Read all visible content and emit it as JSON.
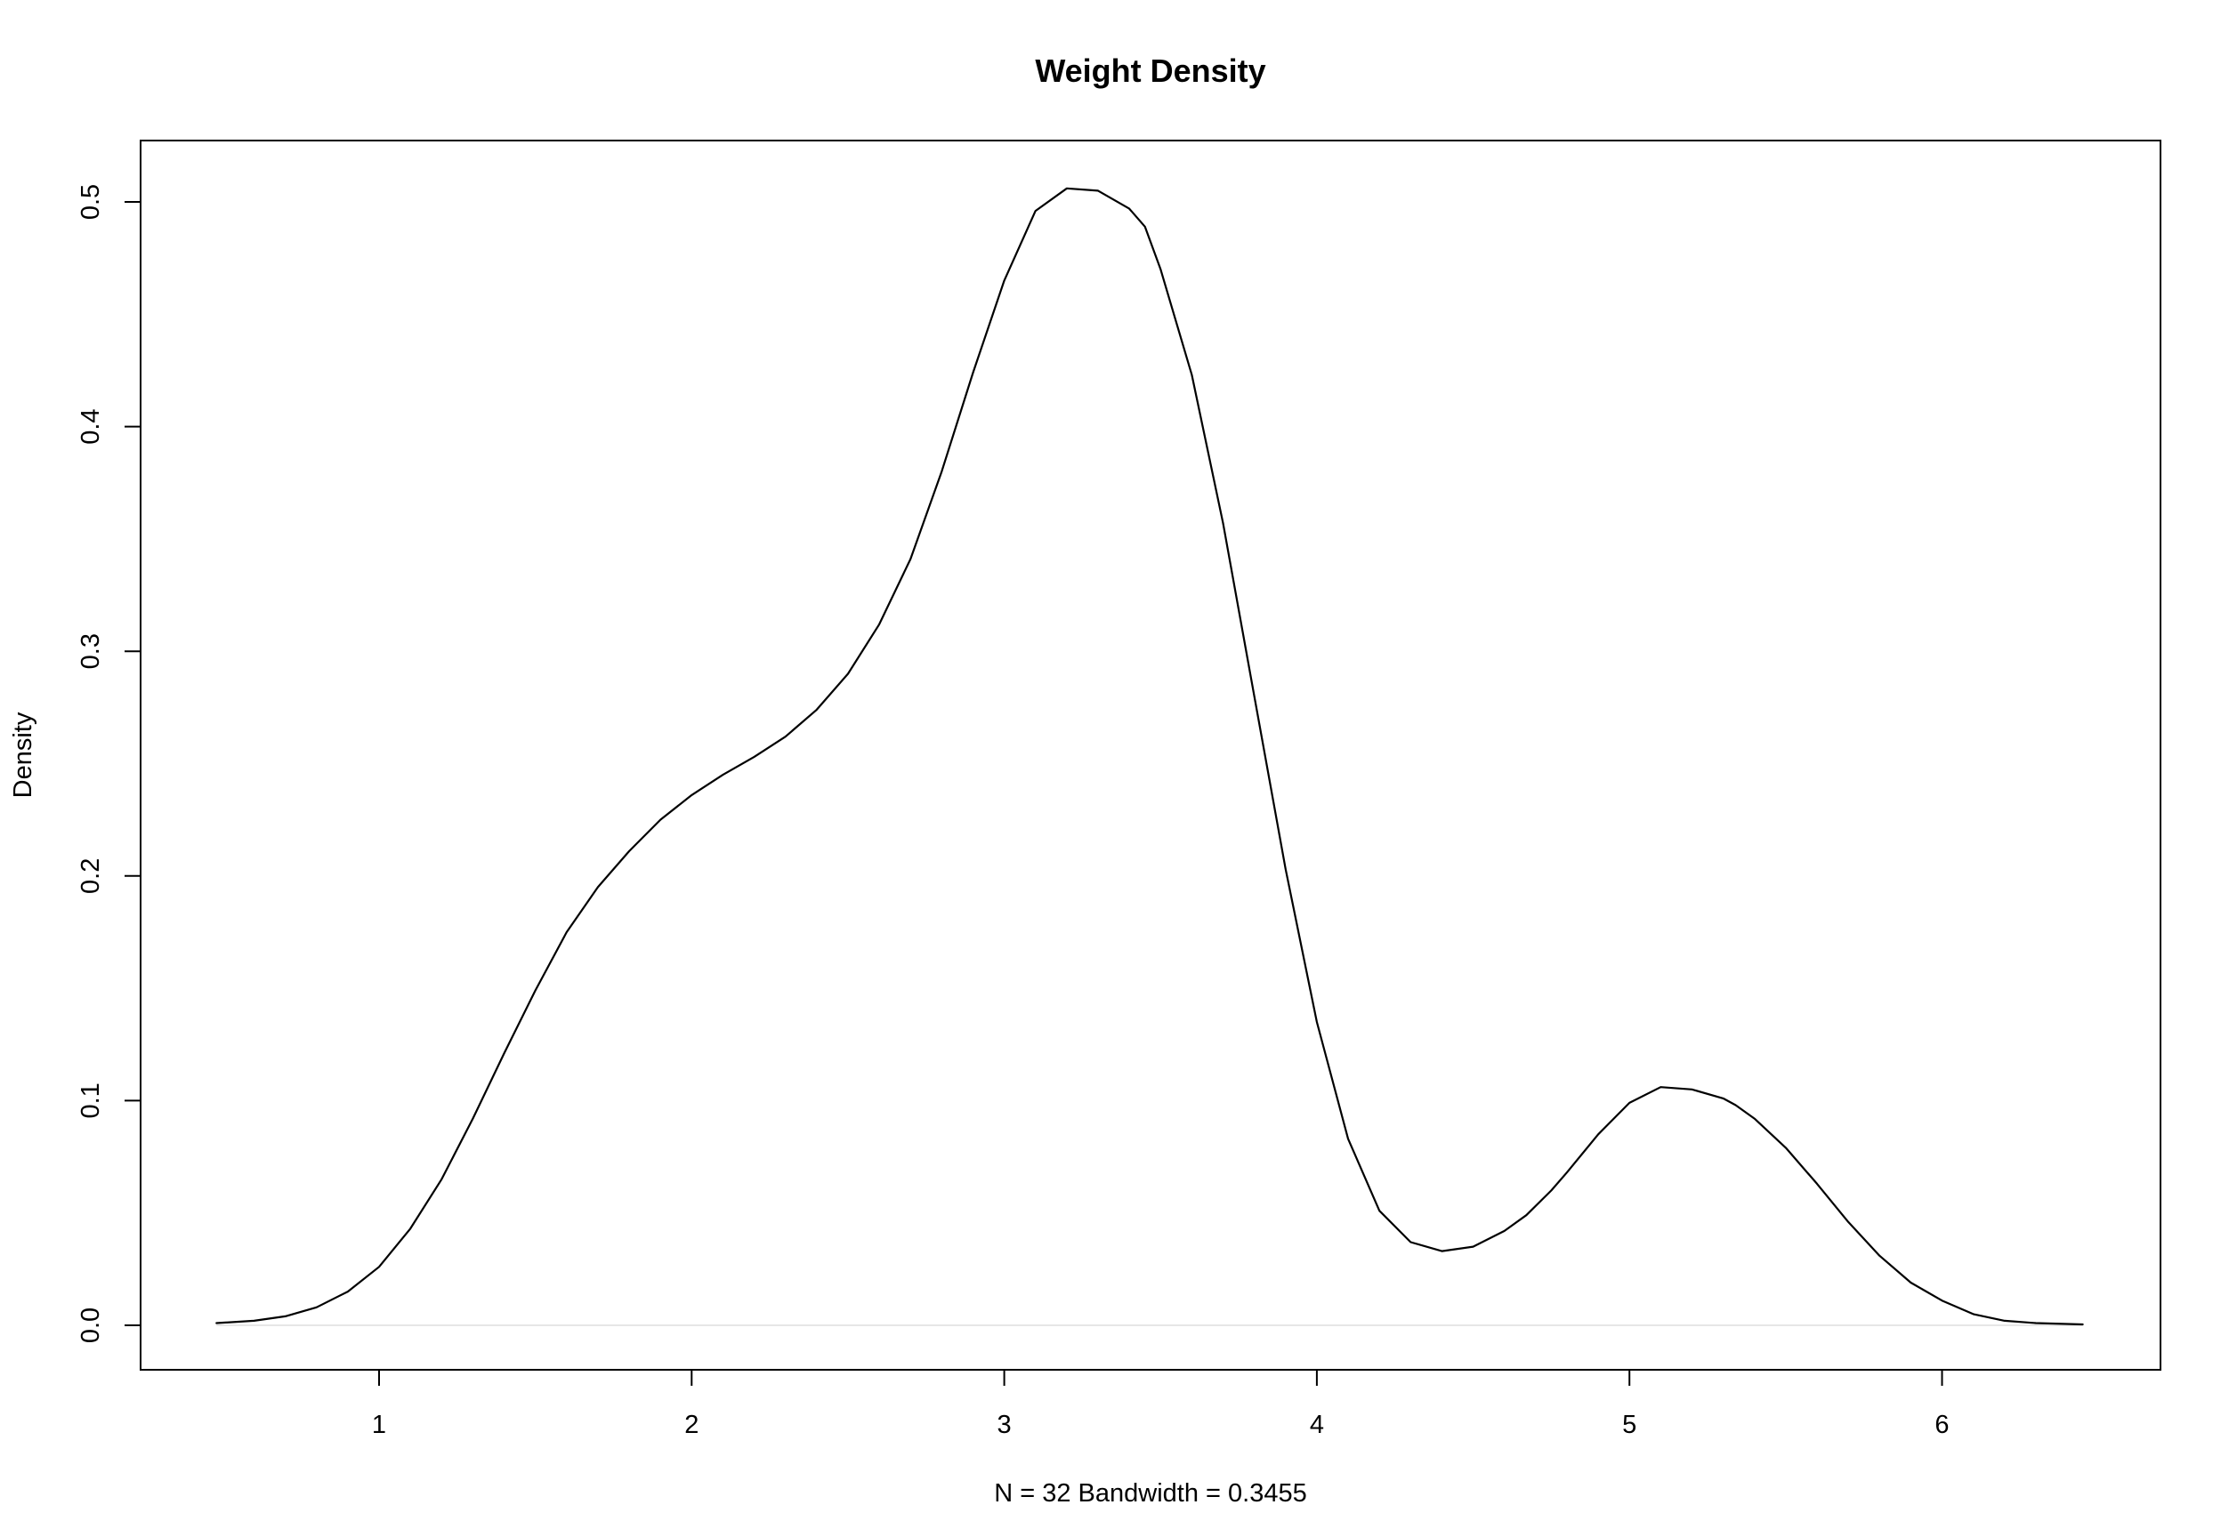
{
  "chart_data": {
    "type": "line",
    "title": "Weight Density",
    "xlabel": "N = 32   Bandwidth = 0.3455",
    "ylabel": "Density",
    "xlim": [
      0.5,
      6.5
    ],
    "ylim": [
      0.0,
      0.5
    ],
    "x_ticks": [
      1,
      2,
      3,
      4,
      5,
      6
    ],
    "x_tick_labels": [
      "1",
      "2",
      "3",
      "4",
      "5",
      "6"
    ],
    "y_ticks": [
      0.0,
      0.1,
      0.2,
      0.3,
      0.4,
      0.5
    ],
    "y_tick_labels": [
      "0.0",
      "0.1",
      "0.2",
      "0.3",
      "0.4",
      "0.5"
    ],
    "grid": false,
    "legend": "none",
    "zero_line": true,
    "series": [
      {
        "color": "#000000",
        "x": [
          0.48,
          0.6,
          0.7,
          0.8,
          0.9,
          1.0,
          1.1,
          1.2,
          1.3,
          1.4,
          1.5,
          1.6,
          1.7,
          1.8,
          1.9,
          2.0,
          2.1,
          2.2,
          2.3,
          2.4,
          2.5,
          2.6,
          2.7,
          2.8,
          2.9,
          3.0,
          3.1,
          3.2,
          3.3,
          3.4,
          3.45,
          3.5,
          3.6,
          3.7,
          3.8,
          3.9,
          4.0,
          4.1,
          4.2,
          4.3,
          4.4,
          4.5,
          4.6,
          4.67,
          4.75,
          4.8,
          4.9,
          5.0,
          5.1,
          5.2,
          5.3,
          5.34,
          5.4,
          5.5,
          5.6,
          5.7,
          5.8,
          5.9,
          6.0,
          6.1,
          6.2,
          6.3,
          6.45
        ],
        "y": [
          0.001,
          0.002,
          0.004,
          0.008,
          0.015,
          0.026,
          0.043,
          0.065,
          0.092,
          0.121,
          0.149,
          0.175,
          0.195,
          0.211,
          0.225,
          0.236,
          0.245,
          0.253,
          0.262,
          0.274,
          0.29,
          0.312,
          0.341,
          0.38,
          0.424,
          0.465,
          0.496,
          0.506,
          0.505,
          0.497,
          0.489,
          0.47,
          0.423,
          0.357,
          0.28,
          0.203,
          0.135,
          0.083,
          0.051,
          0.037,
          0.033,
          0.035,
          0.042,
          0.049,
          0.06,
          0.068,
          0.085,
          0.099,
          0.106,
          0.105,
          0.101,
          0.098,
          0.092,
          0.079,
          0.063,
          0.046,
          0.031,
          0.019,
          0.011,
          0.005,
          0.002,
          0.001,
          0.0004
        ]
      }
    ]
  }
}
